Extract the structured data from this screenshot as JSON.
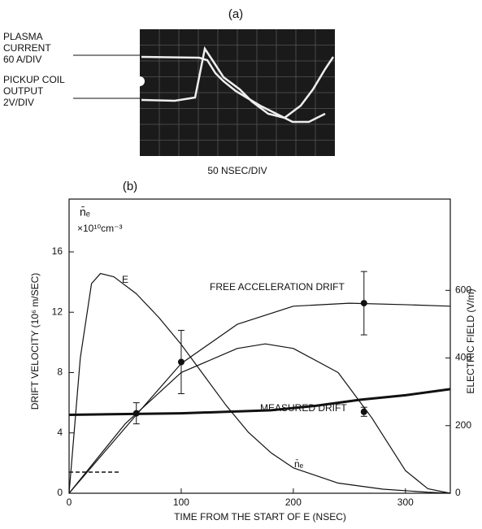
{
  "panel_a": {
    "label": "(a)",
    "channels": [
      [
        "PLASMA",
        "CURRENT",
        "60 A/DIV"
      ],
      [
        "PICKUP COIL",
        "OUTPUT",
        "2V/DIV"
      ]
    ],
    "timebase": "50 NSEC/DIV"
  },
  "chart_data": {
    "type": "line",
    "title": "(b)",
    "x_label": "TIME FROM THE START OF E (NSEC)",
    "y_label": "DRIFT VELOCITY (10⁶ m/SEC)",
    "y2_label": "ELECTRIC FIELD (V/m)",
    "annotations": [
      "n̄ₑ",
      "×10¹⁰cm⁻³"
    ],
    "xlim": [
      0,
      340
    ],
    "xticks": [
      0,
      100,
      200,
      300
    ],
    "ylim": [
      0,
      19.5
    ],
    "yticks": [
      0,
      4,
      8,
      12,
      16
    ],
    "y2lim": [
      0,
      870
    ],
    "y2ticks": [
      0,
      200,
      400,
      600
    ],
    "series": [
      {
        "name": "E",
        "color": "#111111",
        "axis": "y2",
        "width": 1.2,
        "x": [
          0,
          10,
          20,
          28,
          40,
          60,
          80,
          100,
          120,
          140,
          160,
          180,
          200,
          240,
          280,
          320,
          340
        ],
        "values": [
          0,
          400,
          620,
          650,
          640,
          590,
          520,
          440,
          350,
          260,
          180,
          120,
          75,
          30,
          12,
          3,
          0
        ]
      },
      {
        "name": "FREE ACCELERATION DRIFT",
        "color": "#111111",
        "width": 1.2,
        "x": [
          0,
          30,
          60,
          100,
          150,
          200,
          250,
          300,
          340
        ],
        "values": [
          0,
          2.6,
          5.2,
          8.6,
          11.2,
          12.4,
          12.6,
          12.5,
          12.4
        ]
      },
      {
        "name": "MEASURED DRIFT",
        "color": "#111111",
        "width": 3,
        "x": [
          0,
          100,
          180,
          220,
          260,
          300,
          340
        ],
        "values": [
          5.2,
          5.3,
          5.5,
          5.8,
          6.2,
          6.5,
          6.9
        ]
      },
      {
        "name": "n̄ₑ",
        "color": "#111111",
        "width": 1.2,
        "x": [
          0,
          50,
          100,
          150,
          175,
          200,
          240,
          270,
          300,
          320,
          340
        ],
        "values": [
          0,
          4.6,
          8,
          9.6,
          9.9,
          9.6,
          8,
          5,
          1.5,
          0.3,
          0
        ]
      }
    ],
    "points": [
      {
        "x": 60,
        "y": 5.3,
        "error": 0.7
      },
      {
        "x": 100,
        "y": 8.7,
        "error": 2.1
      },
      {
        "x": 263,
        "y": 12.6,
        "error": 2.1
      },
      {
        "x": 263,
        "y": 5.4,
        "error": 0.3
      }
    ],
    "threshold": {
      "x": [
        0,
        45
      ],
      "y": 1.4
    }
  }
}
